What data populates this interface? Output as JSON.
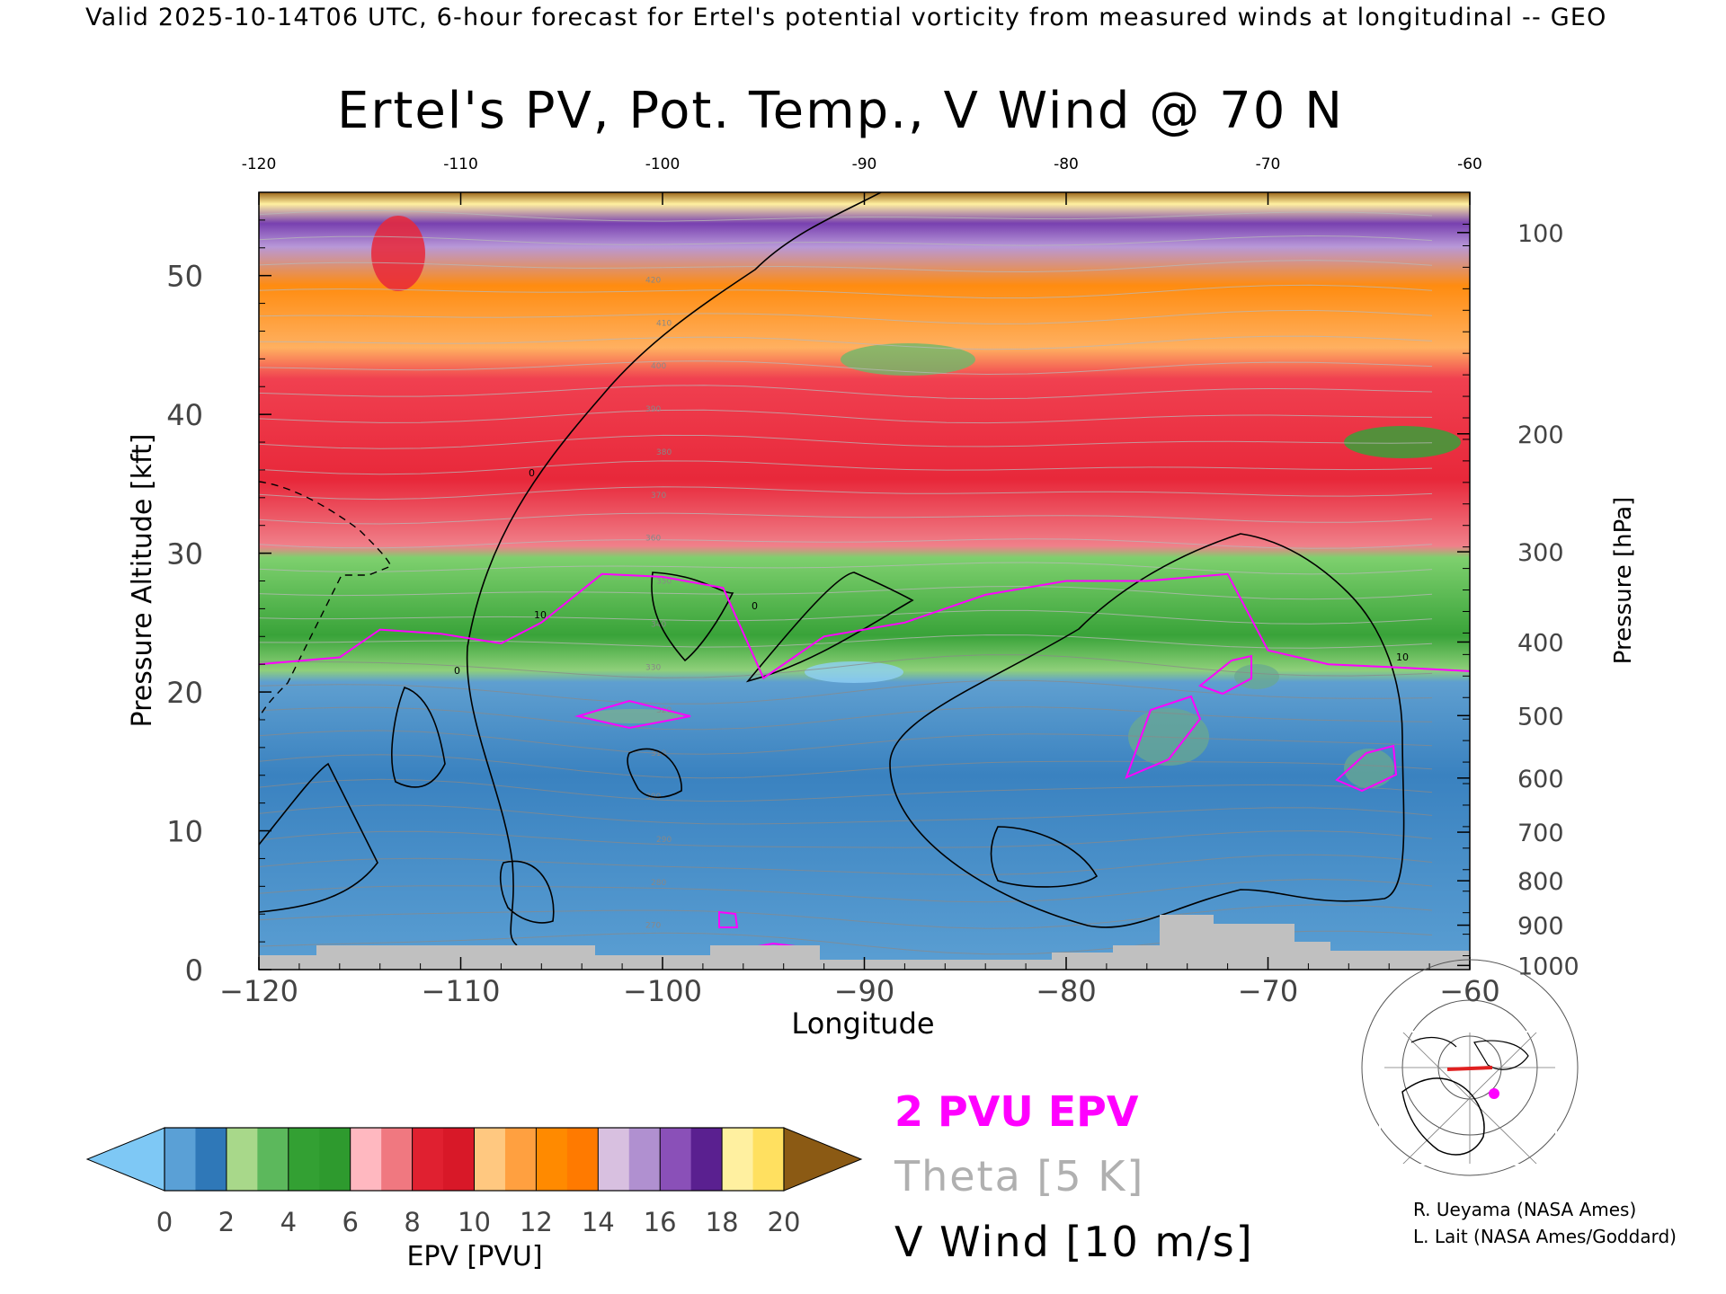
{
  "header": {
    "valid_line": "Valid 2025-10-14T06 UTC, 6-hour forecast for Ertel's potential vorticity from measured winds at longitudinal -- GEO"
  },
  "chart_data": {
    "type": "heatmap",
    "title": "Ertel's PV, Pot. Temp., V Wind @ 70 N",
    "xlabel": "Longitude",
    "ylabel_left": "Pressure Altitude [kft]",
    "ylabel_right": "Pressure [hPa]",
    "xlim": [
      -120,
      -60
    ],
    "ylim": [
      0,
      56
    ],
    "x_ticks": [
      -120,
      -110,
      -100,
      -90,
      -80,
      -70,
      -60
    ],
    "x_tick_labels": [
      "−120",
      "−110",
      "−100",
      "−90",
      "−80",
      "−70",
      "−60"
    ],
    "top_tick_labels": [
      "-120",
      "-110",
      "-100",
      "-90",
      "-80",
      "-70",
      "-60"
    ],
    "y_ticks": [
      0,
      10,
      20,
      30,
      40,
      50
    ],
    "pressure_ticks": [
      {
        "hpa": "100",
        "kft": 53.1
      },
      {
        "hpa": "200",
        "kft": 38.6
      },
      {
        "hpa": "300",
        "kft": 30.1
      },
      {
        "hpa": "400",
        "kft": 23.6
      },
      {
        "hpa": "500",
        "kft": 18.3
      },
      {
        "hpa": "600",
        "kft": 13.8
      },
      {
        "hpa": "700",
        "kft": 9.9
      },
      {
        "hpa": "800",
        "kft": 6.4
      },
      {
        "hpa": "900",
        "kft": 3.2
      },
      {
        "hpa": "1000",
        "kft": 0.3
      }
    ],
    "pv_bands_kft": [
      {
        "pv": 1.2,
        "bottom": 0,
        "top": 22
      },
      {
        "pv": 5,
        "bottom": 22,
        "top": 30
      },
      {
        "pv": 9,
        "bottom": 30,
        "top": 45
      },
      {
        "pv": 12,
        "bottom": 45,
        "top": 51
      },
      {
        "pv": 15,
        "bottom": 51,
        "top": 54
      },
      {
        "pv": 18,
        "bottom": 54,
        "top": 56
      }
    ],
    "tropopause_2pvu": {
      "name": "2 PVU EPV",
      "lon": [
        -120,
        -116,
        -114,
        -111,
        -108,
        -106,
        -103,
        -100,
        -97,
        -95,
        -92,
        -88,
        -84,
        -80,
        -76,
        -72,
        -70,
        -67,
        -64,
        -60
      ],
      "kft": [
        22,
        22.5,
        24.5,
        24.2,
        23.5,
        25,
        28.5,
        28.3,
        27.5,
        21,
        24,
        25,
        27,
        28,
        28,
        28.5,
        23,
        22,
        21.8,
        21.5
      ]
    },
    "theta_isentropes": {
      "name": "Theta [5 K]",
      "interval_K": 5,
      "labels": [
        "270",
        "280",
        "290",
        "300",
        "310",
        "320",
        "330",
        "340",
        "350",
        "360",
        "370",
        "380",
        "390",
        "400",
        "410",
        "420"
      ]
    },
    "v_wind": {
      "name": "V Wind [10 m/s]",
      "interval_ms": 10,
      "contour_labels": [
        "0",
        "10",
        "0",
        "0",
        "10"
      ]
    },
    "colorbar": {
      "label": "EPV [PVU]",
      "ticks": [
        "0",
        "2",
        "4",
        "6",
        "8",
        "10",
        "12",
        "14",
        "16",
        "18",
        "20"
      ],
      "under_color": "#7ec8f5",
      "over_color": "#8b5a14",
      "colors": [
        "#5aa0d6",
        "#2f78b8",
        "#a8d88a",
        "#5cb85c",
        "#33a033",
        "#2e9a2e",
        "#ffb8c0",
        "#f07880",
        "#e02030",
        "#d81828",
        "#ffc880",
        "#ffa040",
        "#ff8a00",
        "#ff7a00",
        "#d8c0e0",
        "#b090d0",
        "#8a50b8",
        "#5a2090",
        "#fff0a0",
        "#ffe060"
      ]
    },
    "grid": false,
    "legend_position": "bottom-center"
  },
  "legend": {
    "pvu": "2 PVU EPV",
    "theta": "Theta [5 K]",
    "vwind": "V Wind [10 m/s]"
  },
  "colors": {
    "pvu_contour": "#ff00ff",
    "theta_contour": "#a0a0a0",
    "vwind_contour": "#000000",
    "terrain": "#c0c0c0"
  },
  "credits": {
    "line1": "R. Ueyama (NASA Ames)",
    "line2": "L. Lait (NASA Ames/Goddard)"
  }
}
